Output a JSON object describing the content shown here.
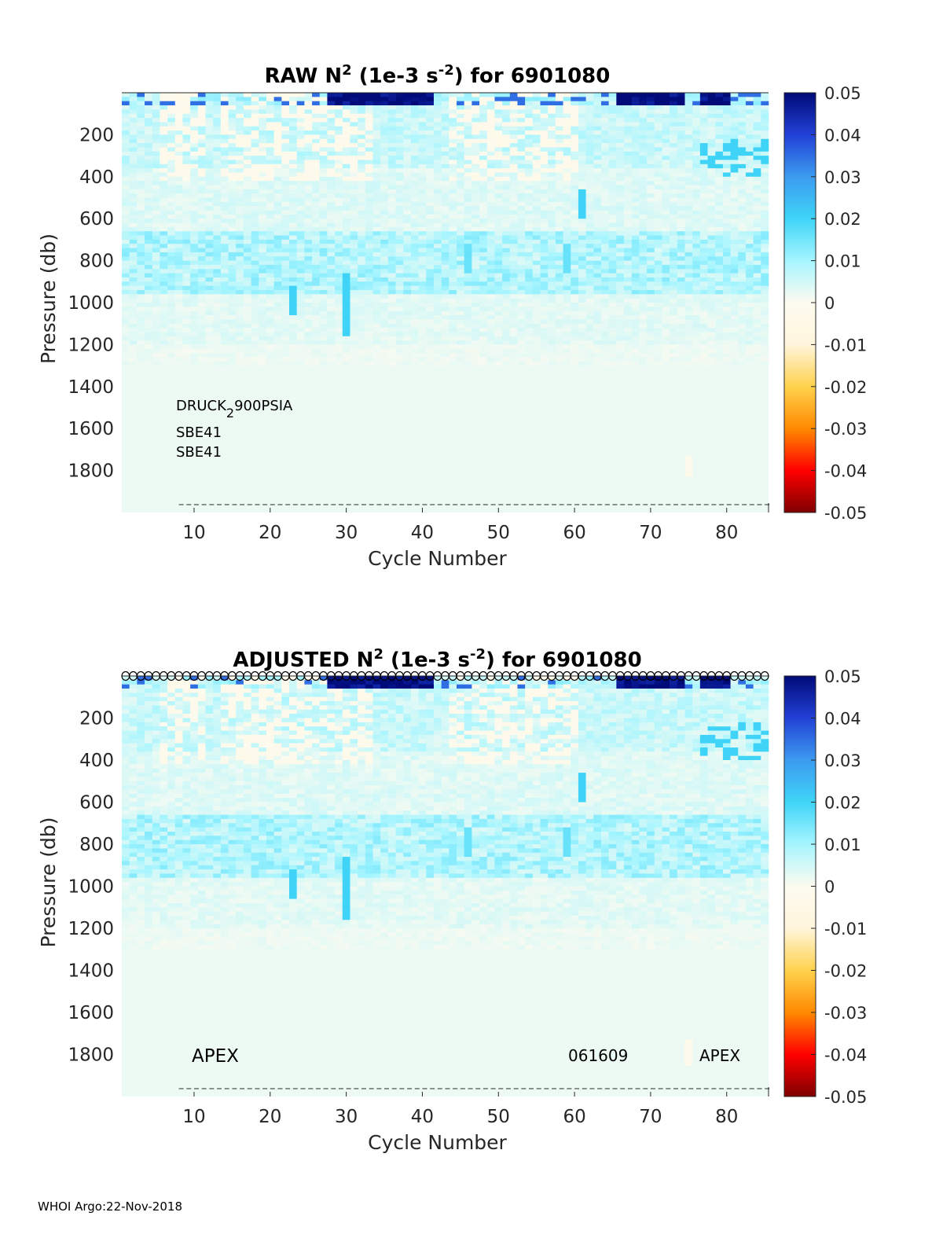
{
  "footer": "WHOI Argo:22-Nov-2018",
  "colormap": {
    "min": -0.05,
    "max": 0.05,
    "ticks": [
      "0.05",
      "0.04",
      "0.03",
      "0.02",
      "0.01",
      "0",
      "-0.01",
      "-0.02",
      "-0.03",
      "-0.04",
      "-0.05"
    ],
    "stops": [
      "#7f0000",
      "#ff0000",
      "#ff8a00",
      "#ffd24d",
      "#fff5dc",
      "#fdfbf0",
      "#a6f5ff",
      "#3fd4f7",
      "#3c9bf0",
      "#2241d6",
      "#000a78"
    ]
  },
  "chart_data": [
    {
      "type": "heatmap",
      "title": {
        "main": "RAW N",
        "sup1": "2",
        "mid": " (1e-3 s",
        "sup2": "-2",
        "end": ") for 6901080"
      },
      "xlabel": "Cycle Number",
      "ylabel": "Pressure (db)",
      "xlim": [
        1,
        85
      ],
      "ylim": [
        2000,
        0
      ],
      "xticks": [
        "10",
        "20",
        "30",
        "40",
        "50",
        "60",
        "70",
        "80"
      ],
      "yticks": [
        "200",
        "400",
        "600",
        "800",
        "1000",
        "1200",
        "1400",
        "1600",
        "1800"
      ],
      "annotations": {
        "sensor1": "DRUCK",
        "sensor1_sub": "2",
        "sensor1_rest": "900PSIA",
        "sensor2": "SBE41",
        "sensor3": "SBE41"
      },
      "cycles": 85,
      "qc_markers": false
    },
    {
      "type": "heatmap",
      "title": {
        "main": "ADJUSTED N",
        "sup1": "2",
        "mid": " (1e-3 s",
        "sup2": "-2",
        "end": ") for 6901080"
      },
      "xlabel": "Cycle Number",
      "ylabel": "Pressure (db)",
      "xlim": [
        1,
        85
      ],
      "ylim": [
        2000,
        0
      ],
      "xticks": [
        "10",
        "20",
        "30",
        "40",
        "50",
        "60",
        "70",
        "80"
      ],
      "yticks": [
        "200",
        "400",
        "600",
        "800",
        "1000",
        "1200",
        "1400",
        "1600",
        "1800"
      ],
      "annotations": {
        "left": "APEX",
        "middle": "061609",
        "right": "APEX"
      },
      "cycles": 85,
      "qc_markers": true
    }
  ]
}
